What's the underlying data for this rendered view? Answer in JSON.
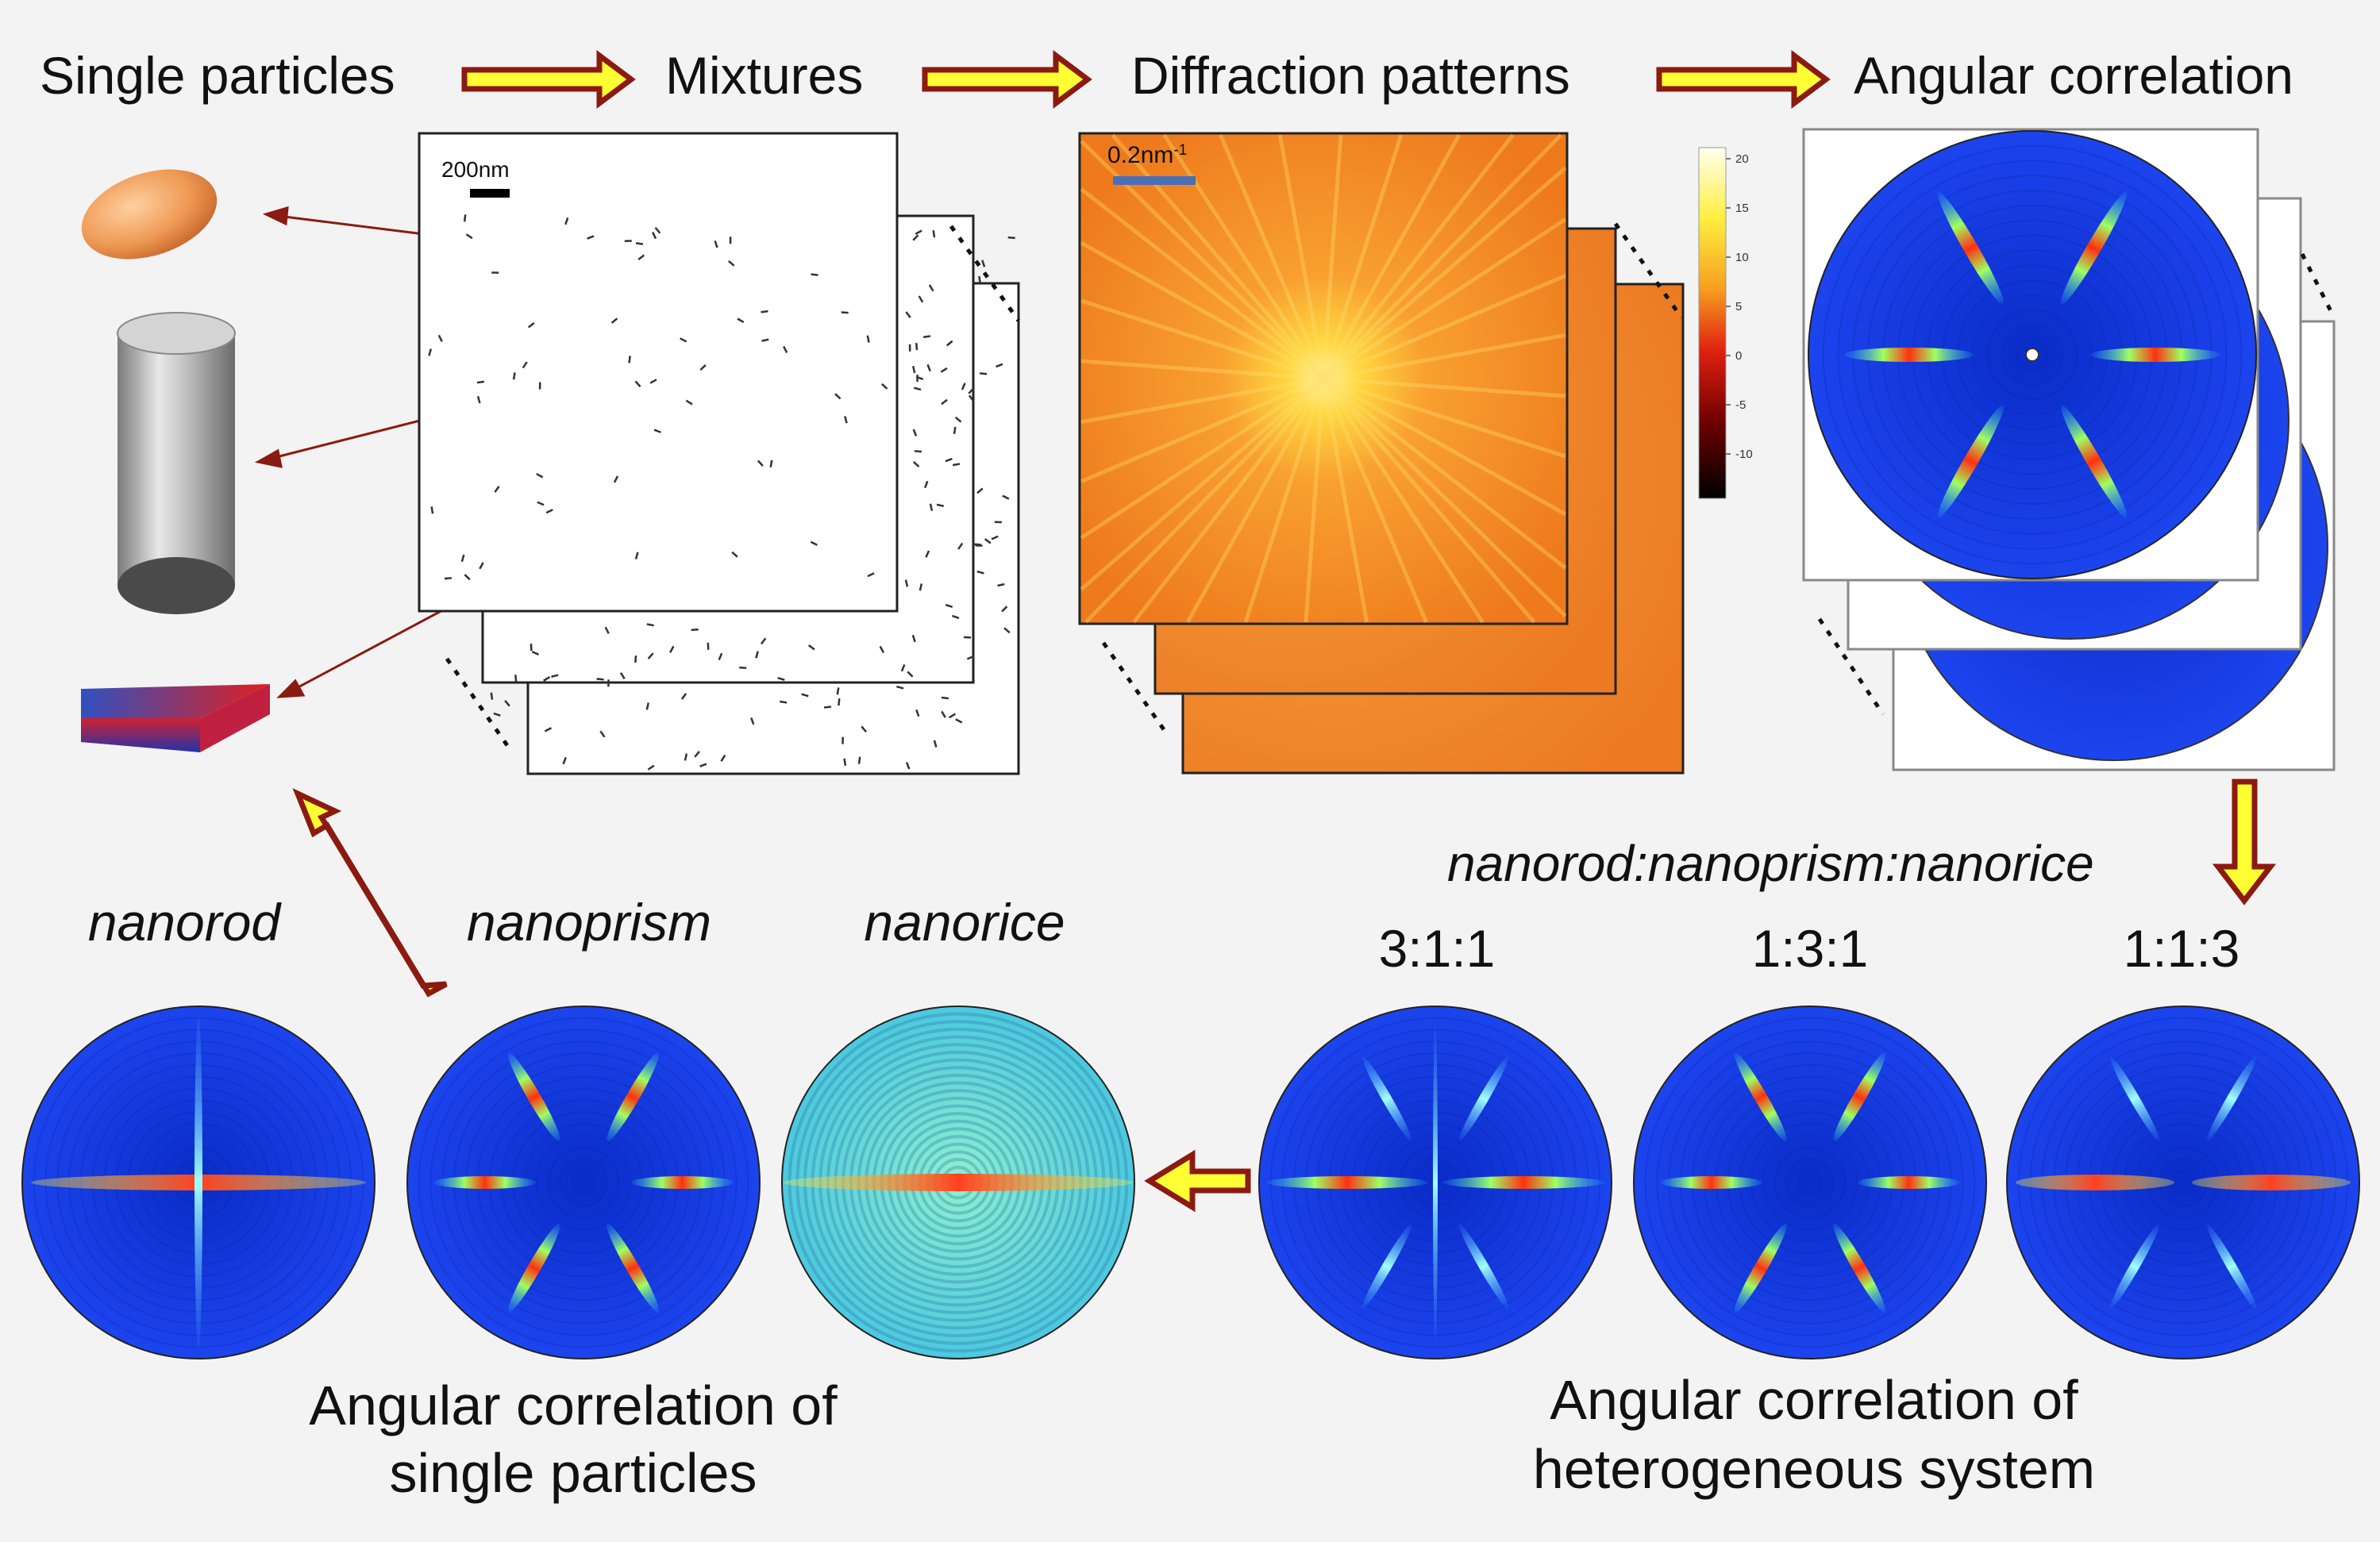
{
  "header": {
    "step1": "Single particles",
    "step2": "Mixtures",
    "step3": "Diffraction patterns",
    "step4": "Angular correlation"
  },
  "scalebars": {
    "real_space": "200nm",
    "reciprocal_base": "0.2nm",
    "reciprocal_exp": "-1"
  },
  "colorbar": {
    "ticks": [
      "20",
      "15",
      "10",
      "5",
      "0",
      "-5",
      "-10"
    ]
  },
  "ratio_header": "nanorod:nanoprism:nanorice",
  "ratios": [
    "3:1:1",
    "1:3:1",
    "1:1:3"
  ],
  "particle_labels": [
    "nanorod",
    "nanoprism",
    "nanorice"
  ],
  "caption_single": [
    "Angular correlation of",
    "single particles"
  ],
  "caption_hetero": [
    "Angular correlation of",
    "heterogeneous system"
  ],
  "colors": {
    "arrow_fill": "#ffff33",
    "arrow_stroke": "#8b1a10",
    "pattern_blue": "#1238e0",
    "diffraction_orange": "#f07a1a"
  }
}
